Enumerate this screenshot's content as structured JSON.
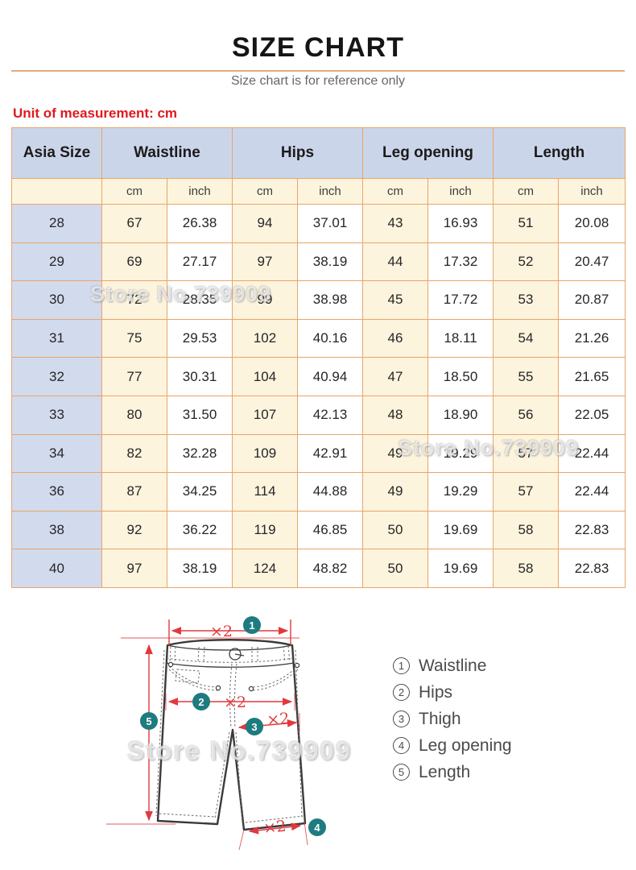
{
  "page": {
    "title": "SIZE CHART",
    "subtitle": "Size chart is for reference only",
    "unit_note": "Unit of measurement: cm",
    "watermark_text": "Store No.739909"
  },
  "colors": {
    "accent_red": "#e0191f",
    "table_border": "#e9a566",
    "header_lavender": "#cbd5ea",
    "row_lavender": "#d2daee",
    "cream": "#fdf4de",
    "diagram_red": "#e2393d",
    "badge_teal": "#1e7b80",
    "divider_tan": "#e3ab7c"
  },
  "size_table": {
    "group_headers": [
      {
        "label": "Asia Size",
        "span": 1
      },
      {
        "label": "Waistline",
        "span": 2
      },
      {
        "label": "Hips",
        "span": 2
      },
      {
        "label": "Leg opening",
        "span": 2
      },
      {
        "label": "Length",
        "span": 2
      }
    ],
    "unit_row": [
      "",
      "cm",
      "inch",
      "cm",
      "inch",
      "cm",
      "inch",
      "cm",
      "inch"
    ],
    "rows": [
      {
        "size": "28",
        "values": [
          "67",
          "26.38",
          "94",
          "37.01",
          "43",
          "16.93",
          "51",
          "20.08"
        ]
      },
      {
        "size": "29",
        "values": [
          "69",
          "27.17",
          "97",
          "38.19",
          "44",
          "17.32",
          "52",
          "20.47"
        ]
      },
      {
        "size": "30",
        "values": [
          "72",
          "28.35",
          "99",
          "38.98",
          "45",
          "17.72",
          "53",
          "20.87"
        ]
      },
      {
        "size": "31",
        "values": [
          "75",
          "29.53",
          "102",
          "40.16",
          "46",
          "18.11",
          "54",
          "21.26"
        ]
      },
      {
        "size": "32",
        "values": [
          "77",
          "30.31",
          "104",
          "40.94",
          "47",
          "18.50",
          "55",
          "21.65"
        ]
      },
      {
        "size": "33",
        "values": [
          "80",
          "31.50",
          "107",
          "42.13",
          "48",
          "18.90",
          "56",
          "22.05"
        ]
      },
      {
        "size": "34",
        "values": [
          "82",
          "32.28",
          "109",
          "42.91",
          "49",
          "19.29",
          "57",
          "22.44"
        ]
      },
      {
        "size": "36",
        "values": [
          "87",
          "34.25",
          "114",
          "44.88",
          "49",
          "19.29",
          "57",
          "22.44"
        ]
      },
      {
        "size": "38",
        "values": [
          "92",
          "36.22",
          "119",
          "46.85",
          "50",
          "19.69",
          "58",
          "22.83"
        ]
      },
      {
        "size": "40",
        "values": [
          "97",
          "38.19",
          "124",
          "48.82",
          "50",
          "19.69",
          "58",
          "22.83"
        ]
      }
    ]
  },
  "diagram": {
    "multiplier_label": "×2",
    "callout_numbers": [
      "1",
      "2",
      "3",
      "4",
      "5"
    ]
  },
  "legend": {
    "items": [
      {
        "num": "1",
        "label": "Waistline"
      },
      {
        "num": "2",
        "label": "Hips"
      },
      {
        "num": "3",
        "label": "Thigh"
      },
      {
        "num": "4",
        "label": "Leg opening"
      },
      {
        "num": "5",
        "label": "Length"
      }
    ]
  }
}
